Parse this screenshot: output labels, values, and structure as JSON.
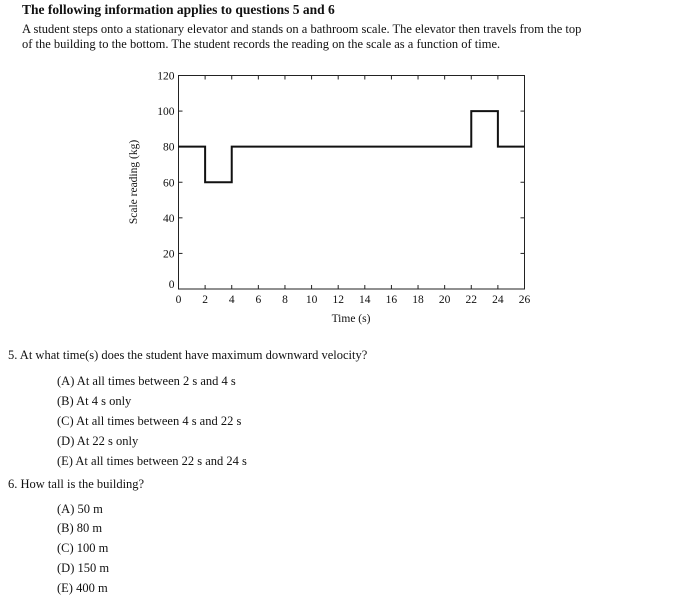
{
  "title": "The following information applies to questions 5 and 6",
  "intro_lines": [
    "A student steps onto a stationary elevator and stands on a bathroom scale. The elevator then travels from the top",
    "of the building to the bottom. The student records the reading on the scale as a function of time."
  ],
  "chart_data": {
    "type": "line",
    "xlabel": "Time (s)",
    "ylabel": "Scale reading (kg)",
    "xlim": [
      0,
      26
    ],
    "ylim": [
      0,
      120
    ],
    "xticks": [
      0,
      2,
      4,
      6,
      8,
      10,
      12,
      14,
      16,
      18,
      20,
      22,
      24,
      26
    ],
    "yticks": [
      0,
      20,
      40,
      60,
      80,
      100,
      120
    ],
    "grid": false,
    "step_series": {
      "x": [
        0,
        2,
        2,
        4,
        4,
        22,
        22,
        24,
        24,
        26
      ],
      "y": [
        80,
        80,
        60,
        60,
        80,
        80,
        100,
        100,
        80,
        80
      ]
    }
  },
  "questions": [
    {
      "text": "5. At what time(s) does the student have maximum downward velocity?",
      "options": [
        "(A) At all times between 2 s and 4 s",
        "(B) At 4 s only",
        "(C) At all times between 4 s and 22 s",
        "(D) At 22 s only",
        "(E) At all times between 22 s and 24 s"
      ]
    },
    {
      "text": "6. How tall is the building?",
      "options": [
        "(A) 50 m",
        "(B) 80 m",
        "(C) 100 m",
        "(D) 150 m",
        "(E) 400 m"
      ]
    }
  ]
}
